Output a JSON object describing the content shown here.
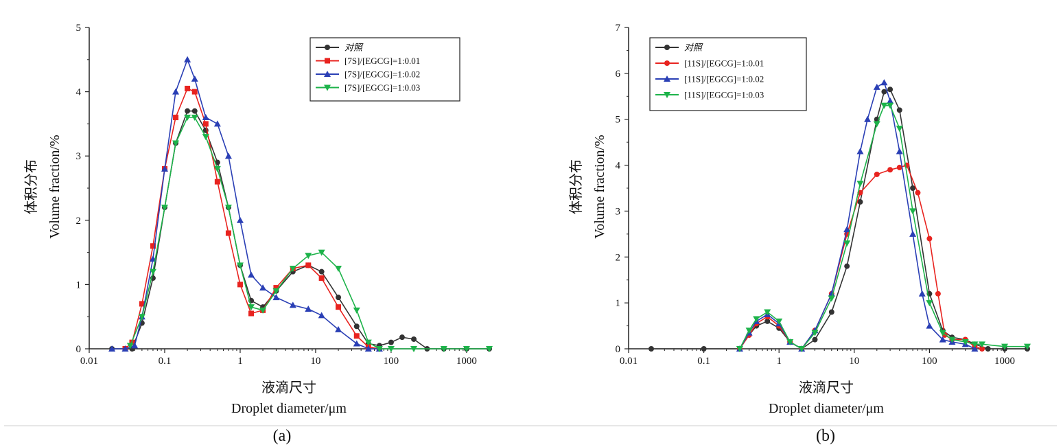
{
  "chart_data": [
    {
      "type": "line",
      "panel_label": "(a)",
      "xlabel_cn": "液滴尺寸",
      "xlabel": "Droplet diameter/μm",
      "ylabel_cn": "体积分布",
      "ylabel": "Volume fraction/%",
      "xscale": "log",
      "xlim": [
        0.01,
        2000
      ],
      "ylim": [
        0,
        5
      ],
      "xticks": [
        0.01,
        0.1,
        1,
        10,
        100,
        1000
      ],
      "xtick_labels": [
        "0.01",
        "0.1",
        "1",
        "10",
        "100",
        "1000"
      ],
      "yticks": [
        0,
        1,
        2,
        3,
        4,
        5
      ],
      "ytick_labels": [
        "0",
        "1",
        "2",
        "3",
        "4",
        "5"
      ],
      "legend_position": "top-right",
      "series": [
        {
          "name": "对照",
          "color": "#333333",
          "marker": "circle",
          "x": [
            0.02,
            0.03,
            0.037,
            0.05,
            0.07,
            0.1,
            0.14,
            0.2,
            0.25,
            0.35,
            0.5,
            0.7,
            1,
            1.4,
            2,
            3,
            5,
            8,
            12,
            20,
            35,
            50,
            70,
            100,
            140,
            200,
            300,
            500,
            1000,
            2000
          ],
          "y": [
            0,
            0,
            0,
            0.4,
            1.1,
            2.2,
            3.2,
            3.7,
            3.7,
            3.4,
            2.9,
            2.2,
            1.3,
            0.75,
            0.65,
            0.9,
            1.2,
            1.3,
            1.2,
            0.8,
            0.35,
            0.08,
            0.05,
            0.1,
            0.18,
            0.15,
            0,
            0,
            0,
            0
          ]
        },
        {
          "name": "[7S]/[EGCG]=1:0.01",
          "color": "#e8231f",
          "marker": "square",
          "x": [
            0.03,
            0.037,
            0.05,
            0.07,
            0.1,
            0.14,
            0.2,
            0.25,
            0.35,
            0.5,
            0.7,
            1,
            1.4,
            2,
            3,
            5,
            8,
            12,
            20,
            35,
            50,
            70
          ],
          "y": [
            0,
            0.1,
            0.7,
            1.6,
            2.8,
            3.6,
            4.05,
            4.0,
            3.5,
            2.6,
            1.8,
            1.0,
            0.55,
            0.6,
            0.95,
            1.25,
            1.3,
            1.1,
            0.65,
            0.2,
            0.03,
            0
          ]
        },
        {
          "name": "[7S]/[EGCG]=1:0.02",
          "color": "#2a3fb5",
          "marker": "triangle-up",
          "x": [
            0.02,
            0.03,
            0.04,
            0.05,
            0.07,
            0.1,
            0.14,
            0.2,
            0.25,
            0.35,
            0.5,
            0.7,
            1,
            1.4,
            2,
            3,
            5,
            8,
            12,
            20,
            35,
            50,
            70
          ],
          "y": [
            0,
            0,
            0.05,
            0.5,
            1.4,
            2.8,
            4.0,
            4.5,
            4.2,
            3.6,
            3.5,
            3.0,
            2.0,
            1.15,
            0.95,
            0.8,
            0.68,
            0.62,
            0.52,
            0.3,
            0.08,
            0,
            0
          ]
        },
        {
          "name": "[7S]/[EGCG]=1:0.03",
          "color": "#1db34a",
          "marker": "triangle-down",
          "x": [
            0.035,
            0.05,
            0.07,
            0.1,
            0.14,
            0.2,
            0.25,
            0.35,
            0.5,
            0.7,
            1,
            1.4,
            2,
            3,
            5,
            8,
            12,
            20,
            35,
            50,
            70,
            100,
            200,
            500,
            1000,
            2000
          ],
          "y": [
            0.05,
            0.5,
            1.2,
            2.2,
            3.2,
            3.6,
            3.6,
            3.3,
            2.8,
            2.2,
            1.3,
            0.65,
            0.6,
            0.9,
            1.25,
            1.45,
            1.5,
            1.25,
            0.6,
            0.1,
            0,
            0,
            0,
            0,
            0,
            0
          ]
        }
      ]
    },
    {
      "type": "line",
      "panel_label": "(b)",
      "xlabel_cn": "液滴尺寸",
      "xlabel": "Droplet diameter/μm",
      "ylabel_cn": "体积分布",
      "ylabel": "Volume fraction/%",
      "xscale": "log",
      "xlim": [
        0.01,
        2000
      ],
      "ylim": [
        0,
        7
      ],
      "xticks": [
        0.01,
        0.1,
        1,
        10,
        100,
        1000
      ],
      "xtick_labels": [
        "0.01",
        "0.1",
        "1",
        "10",
        "100",
        "1000"
      ],
      "yticks": [
        0,
        1,
        2,
        3,
        4,
        5,
        6,
        7
      ],
      "ytick_labels": [
        "0",
        "1",
        "2",
        "3",
        "4",
        "5",
        "6",
        "7"
      ],
      "legend_position": "top-left",
      "series": [
        {
          "name": "对照",
          "color": "#333333",
          "marker": "circle",
          "x": [
            0.02,
            0.1,
            0.3,
            0.4,
            0.5,
            0.7,
            1,
            1.4,
            2,
            3,
            5,
            8,
            12,
            20,
            25,
            30,
            40,
            60,
            100,
            150,
            200,
            300,
            400,
            600,
            1000,
            2000
          ],
          "y": [
            0,
            0,
            0,
            0.3,
            0.5,
            0.6,
            0.45,
            0.15,
            0,
            0.2,
            0.8,
            1.8,
            3.2,
            5.0,
            5.6,
            5.65,
            5.2,
            3.5,
            1.2,
            0.4,
            0.25,
            0.2,
            0.1,
            0,
            0,
            0
          ]
        },
        {
          "name": "[11S]/[EGCG]=1:0.01",
          "color": "#e8231f",
          "marker": "circle",
          "x": [
            0.3,
            0.4,
            0.5,
            0.7,
            1,
            1.4,
            2,
            3,
            5,
            8,
            12,
            20,
            30,
            40,
            50,
            70,
            100,
            130,
            160,
            200,
            300,
            400,
            500
          ],
          "y": [
            0,
            0.3,
            0.55,
            0.7,
            0.5,
            0.15,
            0,
            0.4,
            1.2,
            2.5,
            3.4,
            3.8,
            3.9,
            3.95,
            4.0,
            3.4,
            2.4,
            1.2,
            0.3,
            0.2,
            0.2,
            0.05,
            0
          ]
        },
        {
          "name": "[11S]/[EGCG]=1:0.02",
          "color": "#2a3fb5",
          "marker": "triangle-up",
          "x": [
            0.3,
            0.4,
            0.5,
            0.7,
            1,
            1.4,
            2,
            3,
            5,
            8,
            12,
            15,
            20,
            25,
            30,
            40,
            60,
            80,
            100,
            150,
            200,
            300,
            400
          ],
          "y": [
            0,
            0.35,
            0.6,
            0.75,
            0.55,
            0.15,
            0,
            0.4,
            1.2,
            2.6,
            4.3,
            5.0,
            5.7,
            5.8,
            5.4,
            4.3,
            2.5,
            1.2,
            0.5,
            0.2,
            0.15,
            0.1,
            0
          ]
        },
        {
          "name": "[11S]/[EGCG]=1:0.03",
          "color": "#1db34a",
          "marker": "triangle-down",
          "x": [
            0.3,
            0.4,
            0.5,
            0.7,
            1,
            1.4,
            2,
            3,
            5,
            8,
            12,
            20,
            25,
            30,
            40,
            60,
            100,
            150,
            200,
            300,
            400,
            500,
            1000,
            2000
          ],
          "y": [
            0,
            0.4,
            0.65,
            0.8,
            0.6,
            0.15,
            0,
            0.35,
            1.1,
            2.3,
            3.6,
            4.9,
            5.3,
            5.3,
            4.8,
            3.0,
            1.0,
            0.35,
            0.2,
            0.15,
            0.1,
            0.1,
            0.05,
            0.05
          ]
        }
      ]
    }
  ]
}
